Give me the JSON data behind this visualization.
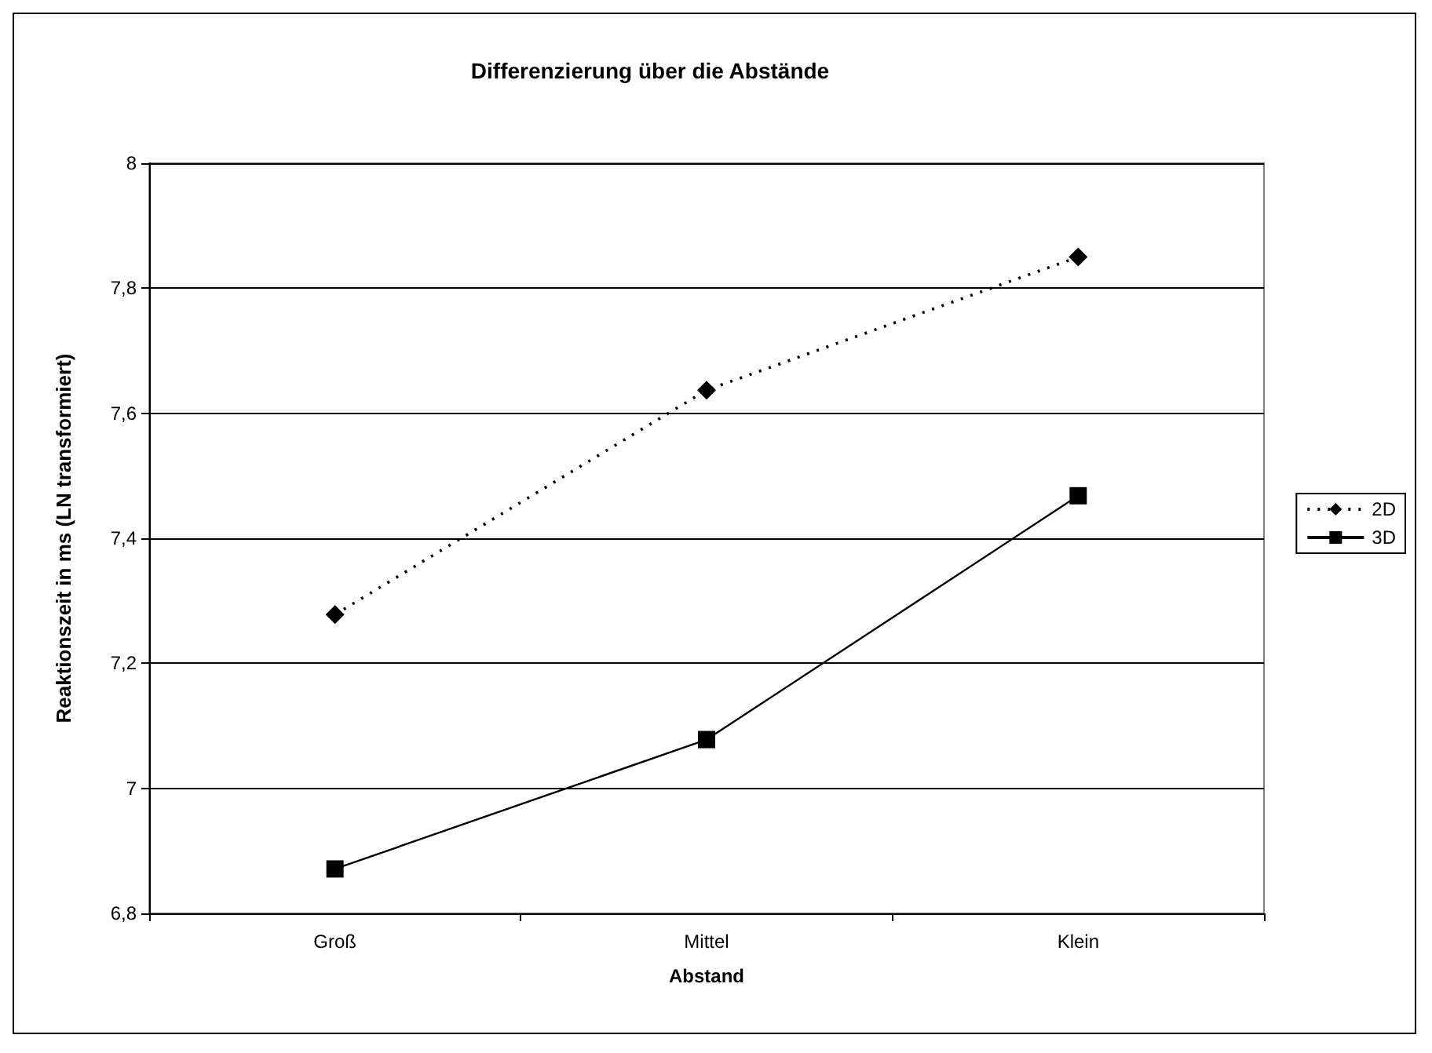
{
  "chart_data": {
    "type": "line",
    "title": "Differenzierung über die Abstände",
    "xlabel": "Abstand",
    "ylabel": "Reaktionszeit in ms (LN transformiert)",
    "categories": [
      "Groß",
      "Mittel",
      "Klein"
    ],
    "series": [
      {
        "name": "2D",
        "color": "#000000",
        "values": [
          7.278,
          7.637,
          7.85
        ],
        "marker": "diamond",
        "line_style": "dotted"
      },
      {
        "name": "3D",
        "color": "#000000",
        "values": [
          6.871,
          7.078,
          7.468
        ],
        "marker": "square",
        "line_style": "solid"
      }
    ],
    "ylim": [
      6.8,
      8
    ],
    "yticks": [
      {
        "value": 6.8,
        "label": "6,8"
      },
      7,
      {
        "value": 7.2,
        "label": "7,2"
      },
      {
        "value": 7.4,
        "label": "7,4"
      },
      {
        "value": 7.6,
        "label": "7,6"
      },
      {
        "value": 7.8,
        "label": "7,8"
      },
      8
    ],
    "grid": "y",
    "legend": "right"
  }
}
